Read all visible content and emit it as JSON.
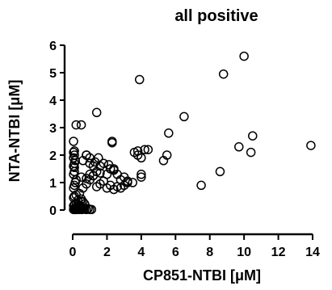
{
  "chart_data": {
    "type": "scatter",
    "title": "all positive",
    "xlabel": "CP851-NTBI [μM]",
    "ylabel": "NTA-NTBI [μM]",
    "xlim": [
      0,
      14
    ],
    "ylim": [
      0,
      6
    ],
    "xticks": [
      "0",
      "2",
      "4",
      "6",
      "8",
      "10",
      "12",
      "14"
    ],
    "yticks": [
      "0",
      "1",
      "2",
      "3",
      "4",
      "5",
      "6"
    ],
    "grid": false,
    "legend": "none",
    "marker": "open-circle",
    "series": [
      {
        "x": [
          0.05,
          0.08,
          0.1,
          0.12,
          0.15,
          0.18,
          0.2,
          0.22,
          0.25,
          0.3,
          0.35,
          0.4,
          0.45,
          0.5,
          0.55,
          0.6,
          0.7,
          0.8,
          0.9,
          1.0,
          1.1,
          0.05,
          0.1,
          0.15,
          0.2,
          0.3,
          0.4,
          0.5,
          0.6,
          0.7,
          0.05,
          0.1,
          0.2,
          0.3,
          0.4,
          0.5,
          0.6,
          0.05,
          0.1,
          0.15,
          0.2,
          0.05,
          0.1,
          0.05,
          0.1,
          0.15,
          0.05,
          0.1,
          0.05,
          0.1,
          0.05,
          0.1,
          0.2,
          0.6,
          0.8,
          1.0,
          1.2,
          1.4,
          1.6,
          1.8,
          2.0,
          2.2,
          2.4,
          2.6,
          2.8,
          3.0,
          3.2,
          0.5,
          0.8,
          1.0,
          1.2,
          1.4,
          1.6,
          2.0,
          2.4,
          0.6,
          0.8,
          1.0,
          1.2,
          1.5,
          1.8,
          2.1,
          2.4,
          2.8,
          3.0,
          3.2,
          3.5,
          3.6,
          3.8,
          4.0,
          4.2,
          0.8,
          1.0,
          1.3,
          1.6,
          2.2,
          2.6,
          4.0,
          4.0,
          4.4,
          3.8,
          1.4,
          2.3,
          2.3,
          0.5,
          5.3,
          5.5,
          5.6,
          6.5,
          7.5,
          8.6,
          9.7,
          10.4,
          10.5,
          10.0,
          8.8,
          13.9,
          3.9
        ],
        "y": [
          0.02,
          0.02,
          0.03,
          0.02,
          0.04,
          0.02,
          0.03,
          0.05,
          0.02,
          0.04,
          0.03,
          0.02,
          0.05,
          0.03,
          0.02,
          0.04,
          0.03,
          0.02,
          0.05,
          0.02,
          0.02,
          0.15,
          0.2,
          0.1,
          0.25,
          0.12,
          0.18,
          0.3,
          0.08,
          0.22,
          0.45,
          0.5,
          0.55,
          0.35,
          0.6,
          0.4,
          0.3,
          0.8,
          0.9,
          1.0,
          1.1,
          1.3,
          1.4,
          1.6,
          1.7,
          1.8,
          1.9,
          2.0,
          2.1,
          1.55,
          2.5,
          2.15,
          3.1,
          0.8,
          0.95,
          1.1,
          1.25,
          0.85,
          0.95,
          1.05,
          0.8,
          0.9,
          0.75,
          0.85,
          0.8,
          0.9,
          1.0,
          1.2,
          1.15,
          1.3,
          1.25,
          1.4,
          1.35,
          1.3,
          1.45,
          1.8,
          2.0,
          1.7,
          1.6,
          1.9,
          1.7,
          1.65,
          1.5,
          1.1,
          1.2,
          1.05,
          1.0,
          2.1,
          2.0,
          1.9,
          2.2,
          2.0,
          1.9,
          1.75,
          1.6,
          1.5,
          1.3,
          1.2,
          1.3,
          2.2,
          2.15,
          3.55,
          2.45,
          2.5,
          3.1,
          1.8,
          2.0,
          2.8,
          3.4,
          0.9,
          1.4,
          2.3,
          2.1,
          2.7,
          5.6,
          4.95,
          2.35,
          4.75
        ]
      }
    ]
  }
}
